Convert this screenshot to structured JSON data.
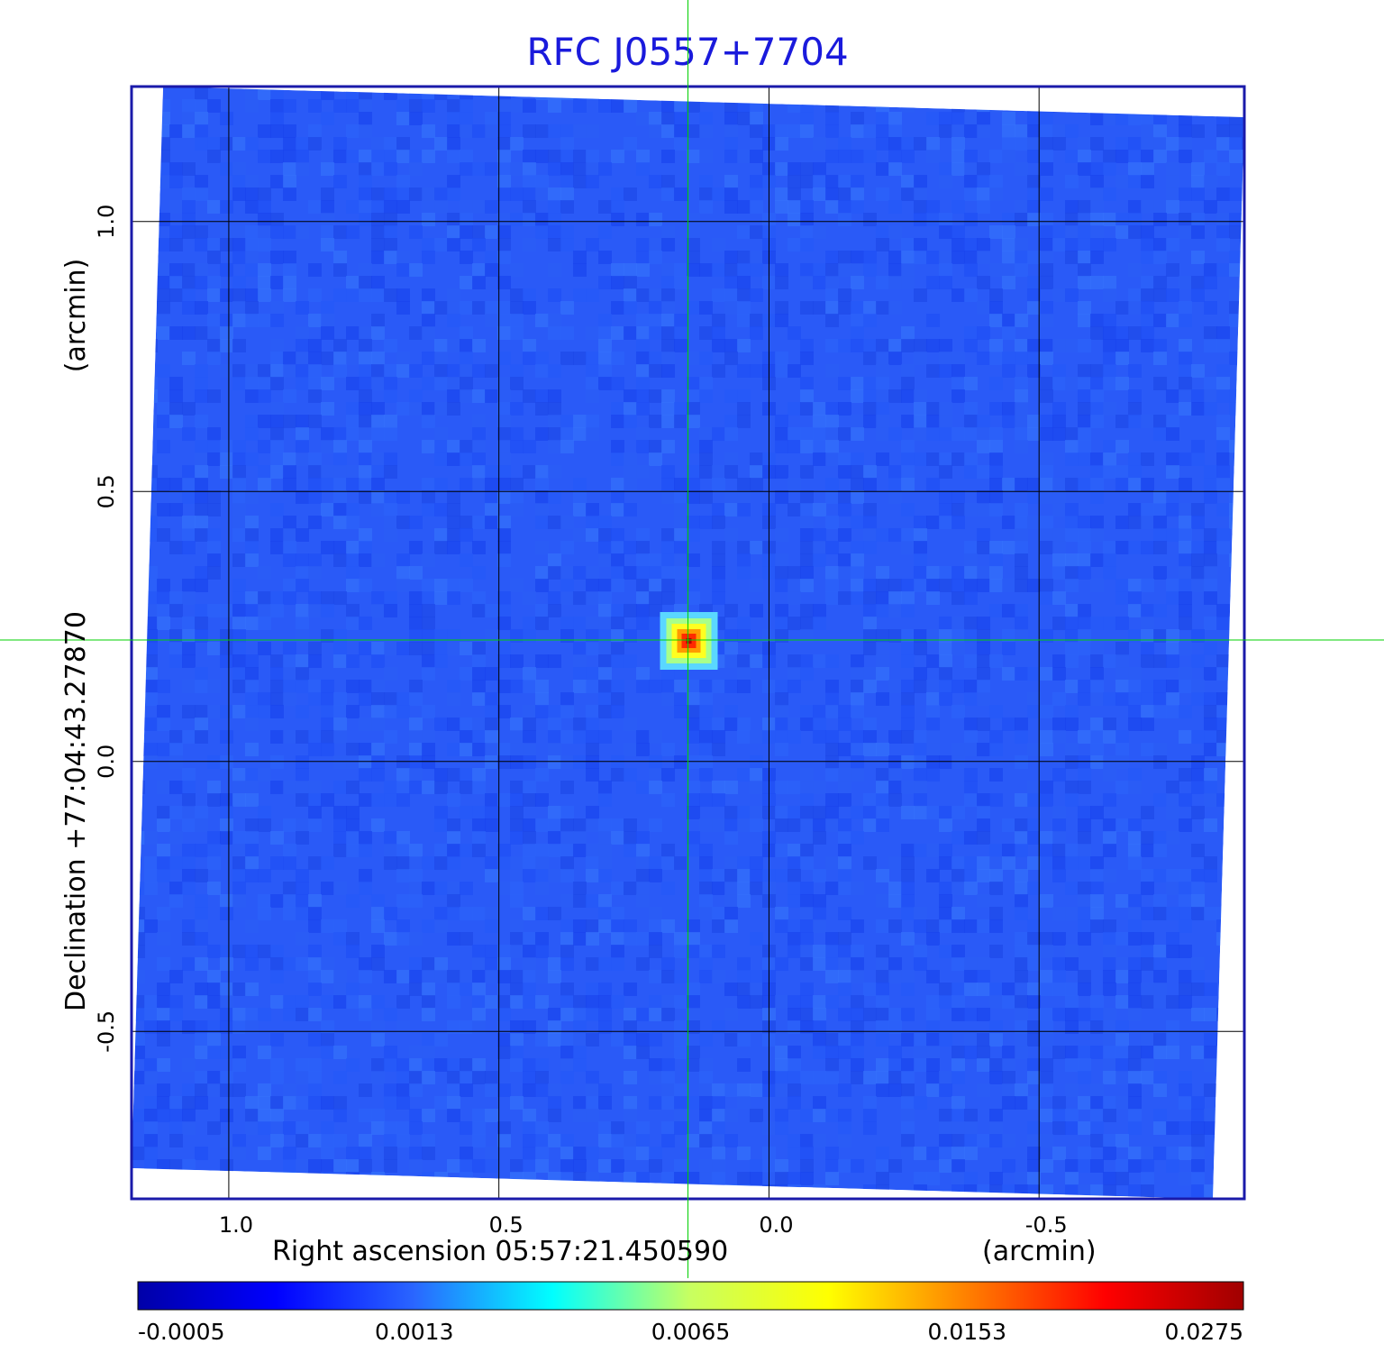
{
  "chart_data": {
    "type": "heatmap",
    "title": "RFC J0557+7704",
    "xlabel": "Right ascension  05:57:21.450590",
    "xunit": "(arcmin)",
    "ylabel": "Declination  +77:04:43.27870",
    "yunit": "(arcmin)",
    "xlim": [
      1.18,
      -0.88
    ],
    "ylim": [
      -0.81,
      1.25
    ],
    "x_ticks": [
      1.0,
      0.5,
      0.0,
      -0.5
    ],
    "x_tick_labels": [
      "1.0",
      "0.5",
      "0.0",
      "-0.5"
    ],
    "y_ticks": [
      1.0,
      0.5,
      0.0,
      -0.5
    ],
    "y_tick_labels": [
      "1.0",
      "0.5",
      "0.0",
      "-0.5"
    ],
    "grid": true,
    "source": {
      "x": 0.15,
      "y": 0.225,
      "peak": 0.0275
    },
    "crosshair": {
      "x": 0.15,
      "y": 0.225
    },
    "background_level": 0.0006,
    "colorbar": {
      "tick_labels": [
        "-0.0005",
        "0.0013",
        "0.0065",
        "0.0153",
        "0.0275"
      ],
      "colors": [
        "#0000a8",
        "#0000ff",
        "#2a66ff",
        "#00ffff",
        "#c8ff60",
        "#ffff00",
        "#ff8000",
        "#ff0000",
        "#a00000"
      ]
    },
    "colors": {
      "title": "#1a1adc",
      "frame": "#1a1aaa",
      "crosshair": "#00d000",
      "grid": "#000000"
    }
  }
}
